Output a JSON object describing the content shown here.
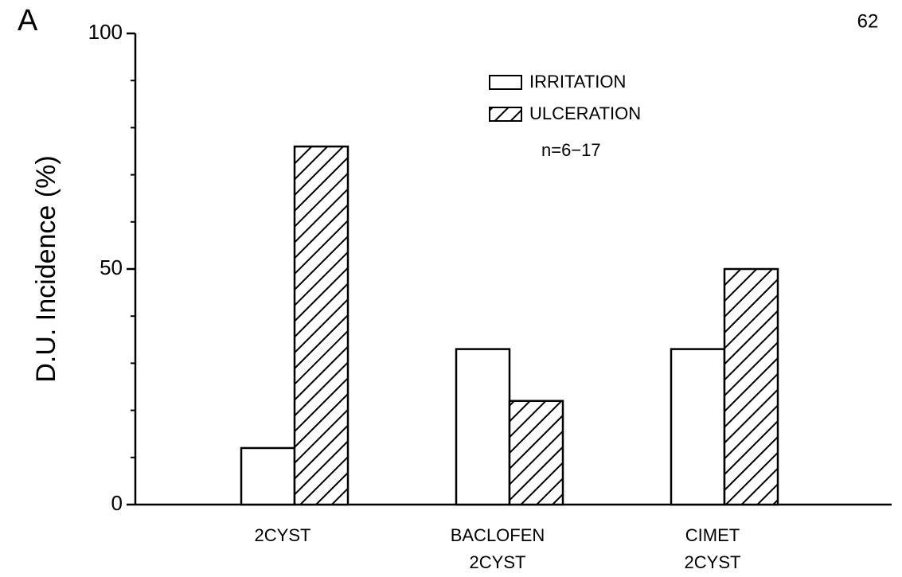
{
  "chart_data": {
    "type": "bar",
    "panel_label": "A",
    "page_number": "62",
    "ylabel": "D.U. Incidence (%)",
    "annotation": "n=6−17",
    "categories": [
      [
        "2CYST"
      ],
      [
        "BACLOFEN",
        "2CYST"
      ],
      [
        "CIMET",
        "2CYST"
      ]
    ],
    "series": [
      {
        "name": "IRRITATION",
        "color": "#ffffff",
        "pattern": "none",
        "values": [
          12,
          33,
          33
        ]
      },
      {
        "name": "ULCERATION",
        "color": "#ffffff",
        "pattern": "diagonal",
        "values": [
          76,
          22,
          50
        ]
      }
    ],
    "ylim": [
      0,
      100
    ],
    "yticks": [
      0,
      50,
      100
    ],
    "minor_yticks": [
      10,
      20,
      30,
      40,
      60,
      70,
      80,
      90
    ]
  }
}
